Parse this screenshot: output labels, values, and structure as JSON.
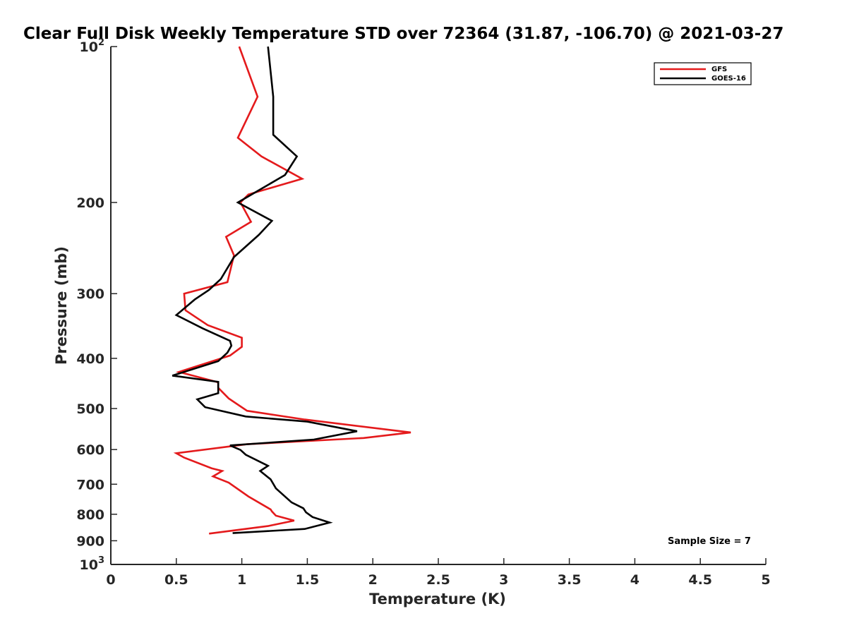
{
  "chart_data": {
    "type": "line",
    "title": "Clear Full Disk Weekly Temperature STD over 72364 (31.87, -106.70) @ 2021-03-27",
    "xlabel": "Temperature (K)",
    "ylabel": "Pressure (mb)",
    "xlim": [
      0,
      5
    ],
    "ylim": [
      100,
      1000
    ],
    "y_scale": "log",
    "y_reversed": true,
    "grid": false,
    "legend_position": "top-right",
    "annotation": "Sample Size = 7",
    "x_ticks": [
      "0",
      "0.5",
      "1",
      "1.5",
      "2",
      "2.5",
      "3",
      "3.5",
      "4",
      "4.5",
      "5"
    ],
    "y_ticks": [
      {
        "value": 100,
        "label": "10",
        "sup": "2"
      },
      {
        "value": 200,
        "label": "200",
        "sup": ""
      },
      {
        "value": 300,
        "label": "300",
        "sup": ""
      },
      {
        "value": 400,
        "label": "400",
        "sup": ""
      },
      {
        "value": 500,
        "label": "500",
        "sup": ""
      },
      {
        "value": 600,
        "label": "600",
        "sup": ""
      },
      {
        "value": 700,
        "label": "700",
        "sup": ""
      },
      {
        "value": 800,
        "label": "800",
        "sup": ""
      },
      {
        "value": 900,
        "label": "900",
        "sup": ""
      },
      {
        "value": 1000,
        "label": "10",
        "sup": "3"
      }
    ],
    "series": [
      {
        "name": "GFS",
        "color": "#e41a1c",
        "points": [
          [
            0.98,
            100
          ],
          [
            1.12,
            125
          ],
          [
            0.97,
            150
          ],
          [
            1.15,
            163
          ],
          [
            1.46,
            180
          ],
          [
            1.05,
            193
          ],
          [
            0.99,
            200
          ],
          [
            1.07,
            218
          ],
          [
            0.88,
            233
          ],
          [
            0.94,
            253
          ],
          [
            0.89,
            285
          ],
          [
            0.56,
            300
          ],
          [
            0.57,
            323
          ],
          [
            0.74,
            345
          ],
          [
            1.0,
            365
          ],
          [
            1.0,
            380
          ],
          [
            0.91,
            395
          ],
          [
            0.52,
            425
          ],
          [
            0.82,
            445
          ],
          [
            0.82,
            456
          ],
          [
            0.9,
            478
          ],
          [
            1.04,
            505
          ],
          [
            1.48,
            525
          ],
          [
            2.29,
            556
          ],
          [
            1.93,
            570
          ],
          [
            1.04,
            586
          ],
          [
            0.5,
            610
          ],
          [
            0.56,
            622
          ],
          [
            0.77,
            652
          ],
          [
            0.85,
            660
          ],
          [
            0.78,
            676
          ],
          [
            0.9,
            695
          ],
          [
            1.05,
            739
          ],
          [
            1.22,
            783
          ],
          [
            1.23,
            790
          ],
          [
            1.26,
            805
          ],
          [
            1.4,
            823
          ],
          [
            1.2,
            843
          ],
          [
            0.75,
            872
          ]
        ]
      },
      {
        "name": "GOES-16",
        "color": "#000000",
        "points": [
          [
            1.2,
            100
          ],
          [
            1.24,
            125
          ],
          [
            1.24,
            148
          ],
          [
            1.42,
            163
          ],
          [
            1.33,
            177
          ],
          [
            0.97,
            200
          ],
          [
            1.23,
            217
          ],
          [
            1.13,
            231
          ],
          [
            0.94,
            255
          ],
          [
            0.84,
            281
          ],
          [
            0.75,
            295
          ],
          [
            0.64,
            308
          ],
          [
            0.5,
            330
          ],
          [
            0.7,
            350
          ],
          [
            0.91,
            370
          ],
          [
            0.92,
            378
          ],
          [
            0.89,
            390
          ],
          [
            0.82,
            405
          ],
          [
            0.47,
            432
          ],
          [
            0.82,
            444
          ],
          [
            0.82,
            467
          ],
          [
            0.66,
            480
          ],
          [
            0.72,
            497
          ],
          [
            1.03,
            518
          ],
          [
            1.5,
            530
          ],
          [
            1.88,
            553
          ],
          [
            1.55,
            574
          ],
          [
            0.91,
            589
          ],
          [
            0.99,
            601
          ],
          [
            1.03,
            614
          ],
          [
            1.2,
            645
          ],
          [
            1.14,
            660
          ],
          [
            1.22,
            685
          ],
          [
            1.26,
            713
          ],
          [
            1.38,
            759
          ],
          [
            1.47,
            779
          ],
          [
            1.49,
            793
          ],
          [
            1.54,
            810
          ],
          [
            1.67,
            830
          ],
          [
            1.48,
            854
          ],
          [
            0.93,
            870
          ]
        ]
      }
    ]
  }
}
